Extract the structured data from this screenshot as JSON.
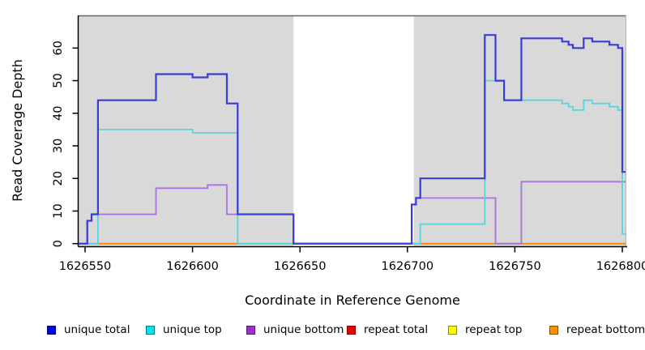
{
  "chart_data": {
    "type": "line",
    "style": "step-after",
    "title": "",
    "xlabel": "Coordinate in Reference Genome",
    "ylabel": "Read Coverage Depth",
    "xlim": [
      1626547,
      1626802
    ],
    "ylim": [
      0,
      70
    ],
    "grid": false,
    "x_ticks": [
      {
        "value": 1626550,
        "label": "1626550"
      },
      {
        "value": 1626600,
        "label": "1626600"
      },
      {
        "value": 1626650,
        "label": "1626650"
      },
      {
        "value": 1626700,
        "label": "1626700"
      },
      {
        "value": 1626750,
        "label": "1626750"
      },
      {
        "value": 1626800,
        "label": "1626800"
      }
    ],
    "y_ticks": [
      0,
      10,
      20,
      30,
      40,
      50,
      60
    ],
    "shaded_regions": [
      {
        "x0": 1626547,
        "x1": 1626647,
        "color": "#D9D9D9"
      },
      {
        "x0": 1626703,
        "x1": 1626801.5,
        "color": "#D9D9D9"
      }
    ],
    "x_end": 1626801.5,
    "series": [
      {
        "name": "repeat total",
        "color": "#CC0000",
        "lwd": 1.5,
        "points": [
          [
            1626547,
            0
          ]
        ]
      },
      {
        "name": "repeat top",
        "color": "#E8E800",
        "lwd": 1.5,
        "points": [
          [
            1626547,
            0
          ]
        ]
      },
      {
        "name": "repeat bottom",
        "color": "#FF8C00",
        "lwd": 2,
        "points": [
          [
            1626547,
            0
          ]
        ]
      },
      {
        "name": "unique bottom",
        "color": "#A973DB",
        "lwd": 1.8,
        "points": [
          [
            1626547,
            0
          ],
          [
            1626551,
            7
          ],
          [
            1626553,
            9
          ],
          [
            1626583,
            17
          ],
          [
            1626607,
            18
          ],
          [
            1626616,
            9
          ],
          [
            1626647,
            0
          ],
          [
            1626702,
            12
          ],
          [
            1626704,
            14
          ],
          [
            1626741,
            0
          ],
          [
            1626753,
            19
          ]
        ]
      },
      {
        "name": "unique top",
        "color": "#55D6DE",
        "lwd": 1.8,
        "points": [
          [
            1626547,
            0
          ],
          [
            1626556,
            35
          ],
          [
            1626600,
            34
          ],
          [
            1626621,
            0
          ],
          [
            1626706,
            6
          ],
          [
            1626736,
            50
          ],
          [
            1626745,
            44
          ],
          [
            1626772,
            43
          ],
          [
            1626775,
            42
          ],
          [
            1626777,
            41
          ],
          [
            1626782,
            44
          ],
          [
            1626786,
            43
          ],
          [
            1626794,
            42
          ],
          [
            1626798,
            41
          ],
          [
            1626800,
            3
          ]
        ]
      },
      {
        "name": "unique total",
        "color": "#3B3BD6",
        "lwd": 2.2,
        "points": [
          [
            1626547,
            0
          ],
          [
            1626551,
            7
          ],
          [
            1626553,
            9
          ],
          [
            1626556,
            44
          ],
          [
            1626583,
            52
          ],
          [
            1626600,
            51
          ],
          [
            1626607,
            52
          ],
          [
            1626616,
            43
          ],
          [
            1626621,
            9
          ],
          [
            1626647,
            0
          ],
          [
            1626702,
            12
          ],
          [
            1626704,
            14
          ],
          [
            1626706,
            20
          ],
          [
            1626736,
            64
          ],
          [
            1626741,
            50
          ],
          [
            1626745,
            44
          ],
          [
            1626753,
            63
          ],
          [
            1626772,
            62
          ],
          [
            1626775,
            61
          ],
          [
            1626777,
            60
          ],
          [
            1626782,
            63
          ],
          [
            1626786,
            62
          ],
          [
            1626794,
            61
          ],
          [
            1626798,
            60
          ],
          [
            1626800,
            22
          ]
        ]
      }
    ],
    "legend": [
      {
        "label": "unique total",
        "color": "#0000EE"
      },
      {
        "label": "unique top",
        "color": "#00E5E5"
      },
      {
        "label": "unique bottom",
        "color": "#9932CC"
      },
      {
        "label": "repeat total",
        "color": "#EE0000"
      },
      {
        "label": "repeat top",
        "color": "#FFFF00"
      },
      {
        "label": "repeat bottom",
        "color": "#FF9100"
      }
    ],
    "legend_position": "bottom"
  }
}
